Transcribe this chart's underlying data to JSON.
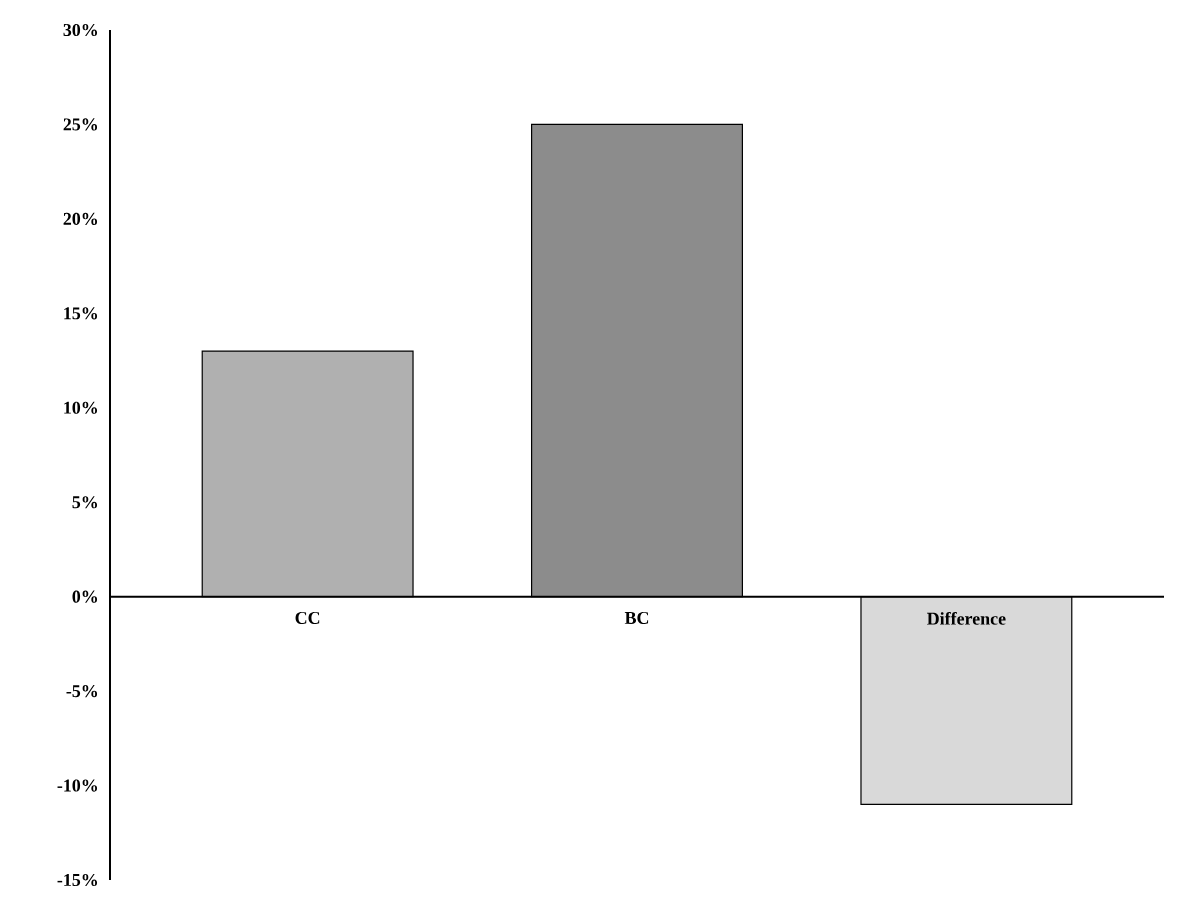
{
  "chart_data": {
    "type": "bar",
    "categories": [
      "CC",
      "BC",
      "Difference"
    ],
    "values": [
      13,
      25,
      -11
    ],
    "colors": [
      "#b0b0b0",
      "#8c8c8c",
      "#d9d9d9"
    ],
    "ylim": [
      -15,
      30
    ],
    "yticks": [
      {
        "value": -15,
        "label": "-15%"
      },
      {
        "value": -10,
        "label": "-10%"
      },
      {
        "value": -5,
        "label": "-5%"
      },
      {
        "value": 0,
        "label": "0%"
      },
      {
        "value": 5,
        "label": "5%"
      },
      {
        "value": 10,
        "label": "10%"
      },
      {
        "value": 15,
        "label": "15%"
      },
      {
        "value": 20,
        "label": "20%"
      },
      {
        "value": 25,
        "label": "25%"
      },
      {
        "value": 30,
        "label": "30%"
      }
    ],
    "grid": false
  }
}
